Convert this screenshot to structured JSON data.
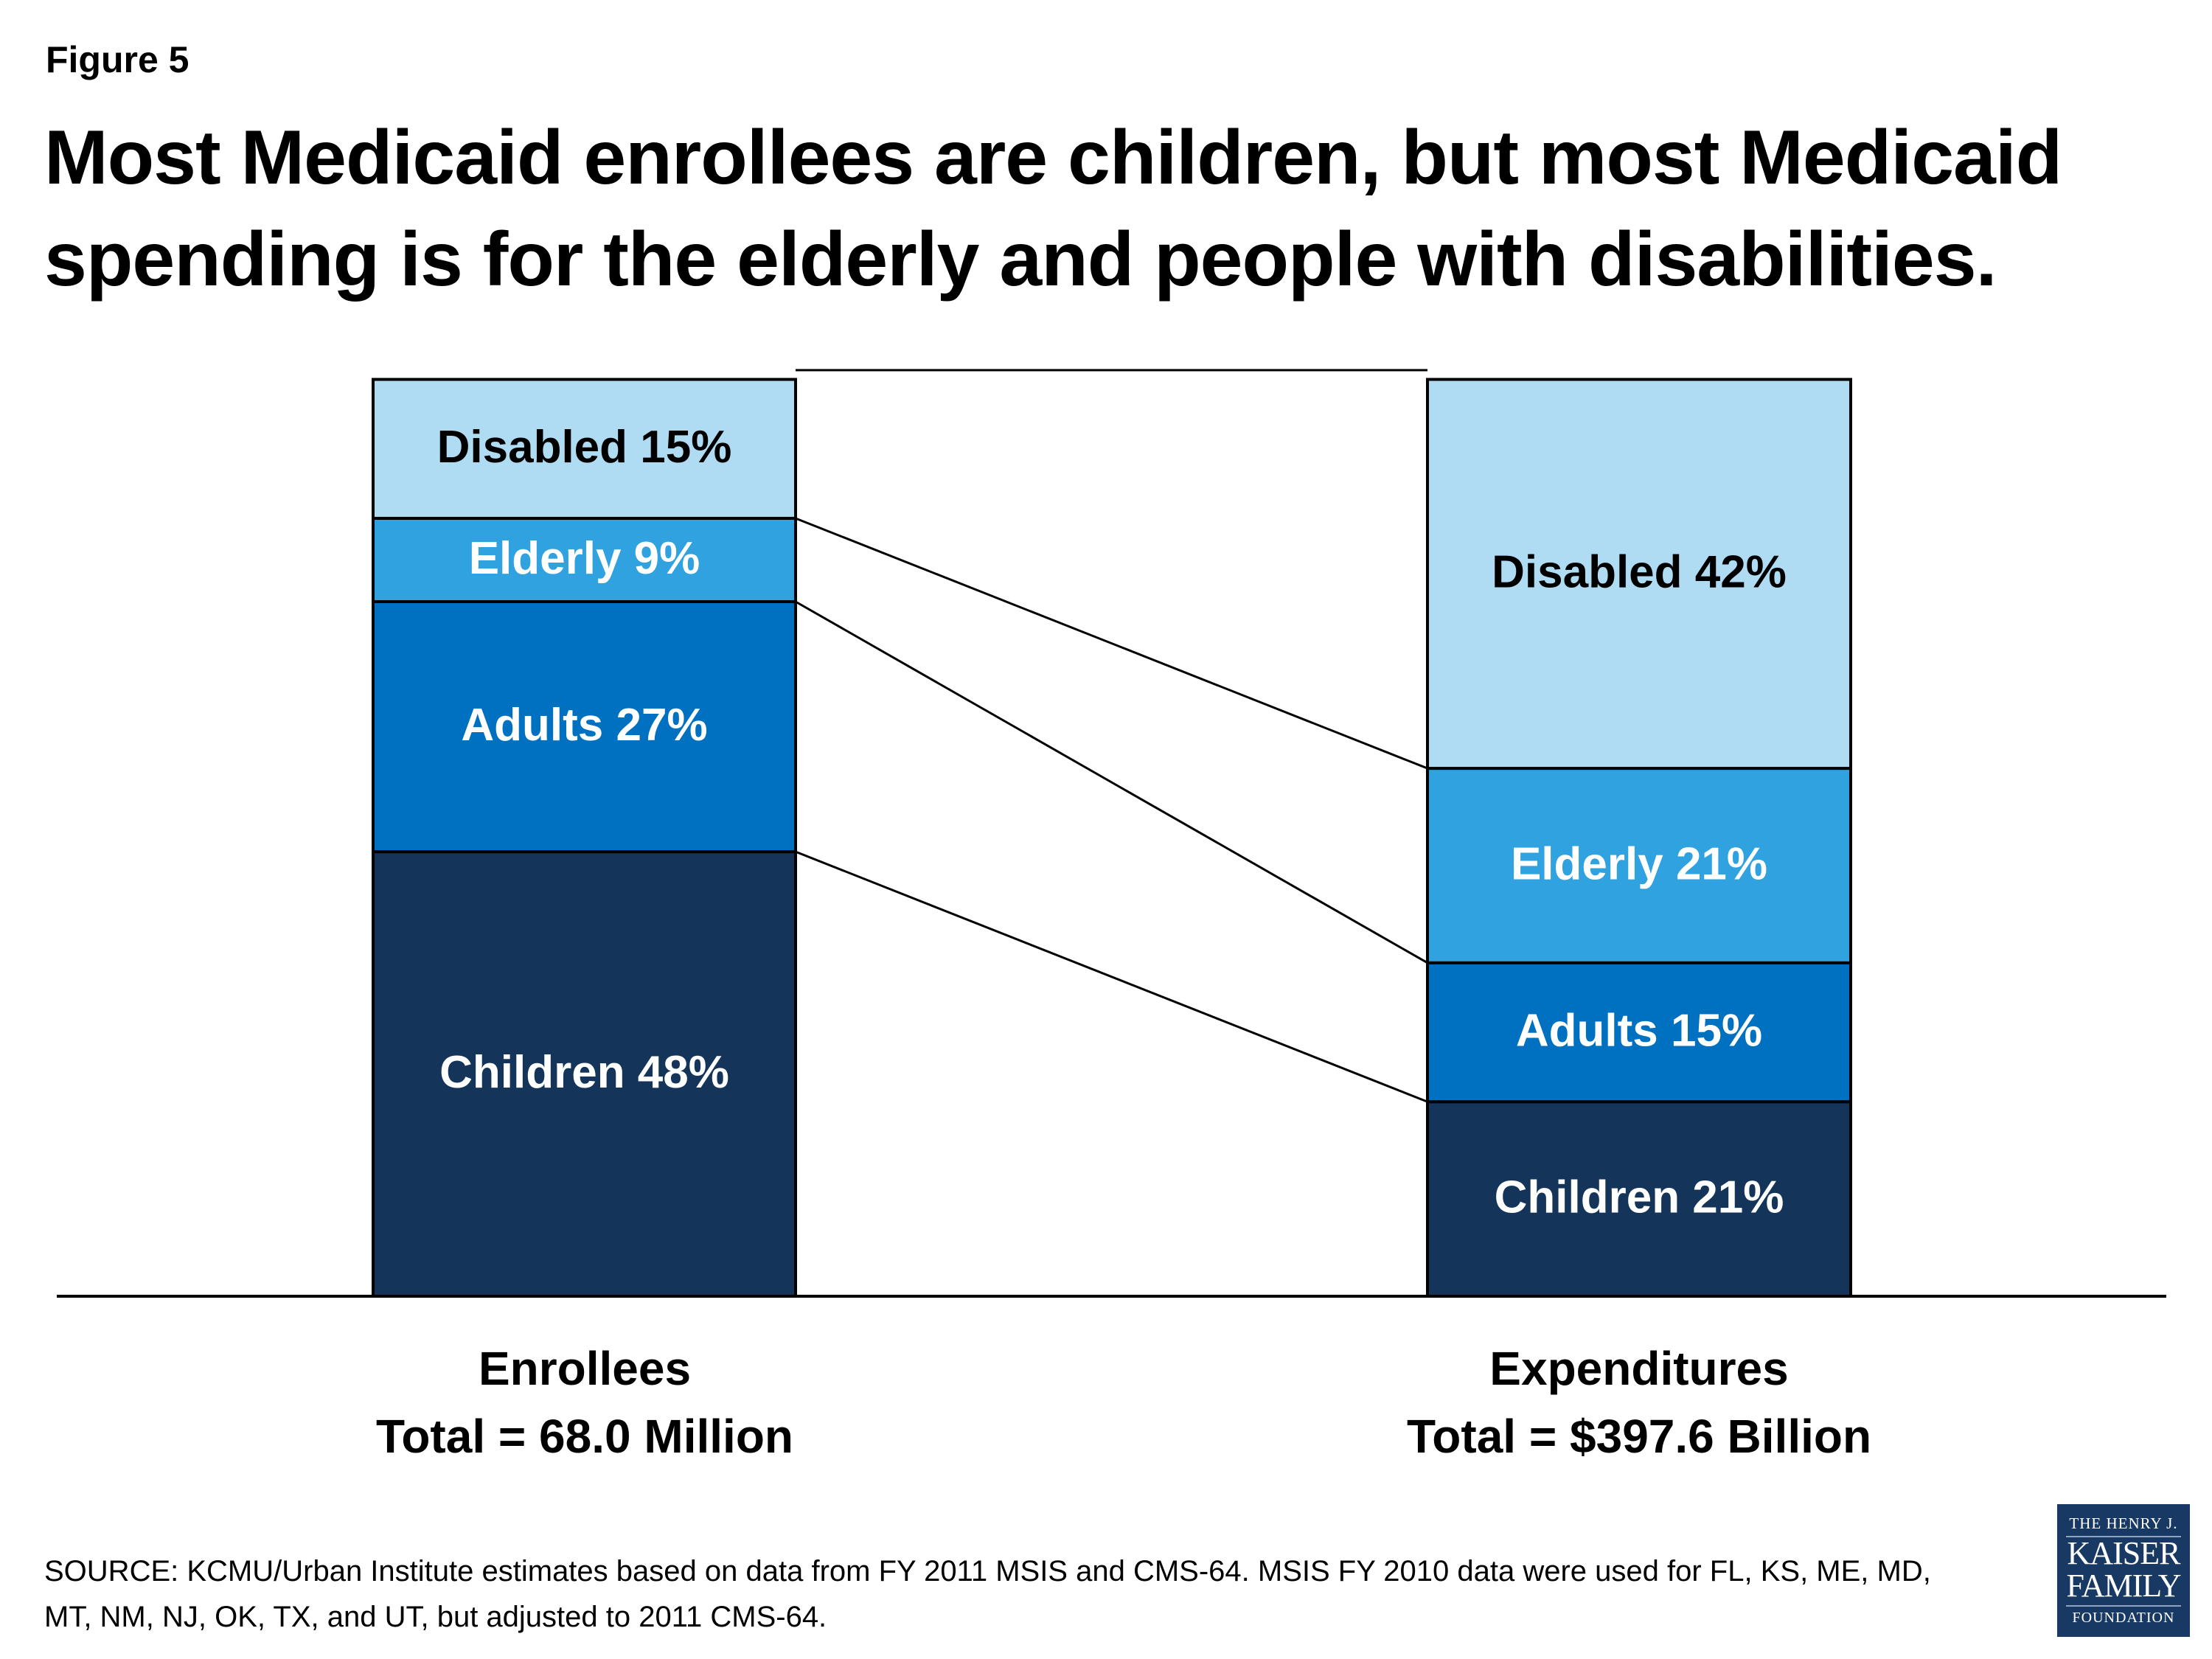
{
  "figure_label": "Figure 5",
  "title": "Most Medicaid enrollees are children, but most Medicaid spending is for the elderly and people with disabilities.",
  "chart_data": {
    "type": "bar",
    "stacked": true,
    "normalized_percent": true,
    "categories": [
      "Enrollees",
      "Expenditures"
    ],
    "category_totals": [
      "Total = 68.0 Million",
      "Total = $397.6 Billion"
    ],
    "series": [
      {
        "name": "Children",
        "values": [
          48,
          21
        ],
        "color": "#14345a",
        "text_color": "#ffffff"
      },
      {
        "name": "Adults",
        "values": [
          27,
          15
        ],
        "color": "#0070c0",
        "text_color": "#ffffff"
      },
      {
        "name": "Elderly",
        "values": [
          9,
          21
        ],
        "color": "#31a2e0",
        "text_color": "#ffffff"
      },
      {
        "name": "Disabled",
        "values": [
          15,
          42
        ],
        "color": "#b0dcf3",
        "text_color": "#000000"
      }
    ],
    "data_labels": [
      [
        "Children 48%",
        "Children 21%"
      ],
      [
        "Adults 27%",
        "Adults 15%"
      ],
      [
        "Elderly 9%",
        "Elderly 21%"
      ],
      [
        "Disabled 15%",
        "Disabled 42%"
      ]
    ],
    "connector_lines": true,
    "grid": false,
    "legend": "none"
  },
  "source": "SOURCE: KCMU/Urban Institute estimates based on data from FY 2011 MSIS and CMS-64. MSIS FY 2010 data were used for FL, KS, ME, MD, MT, NM, NJ, OK, TX, and UT, but adjusted to 2011 CMS-64.",
  "logo": {
    "line1": "THE HENRY J.",
    "line2": "KAISER",
    "line3": "FAMILY",
    "line4": "FOUNDATION"
  }
}
